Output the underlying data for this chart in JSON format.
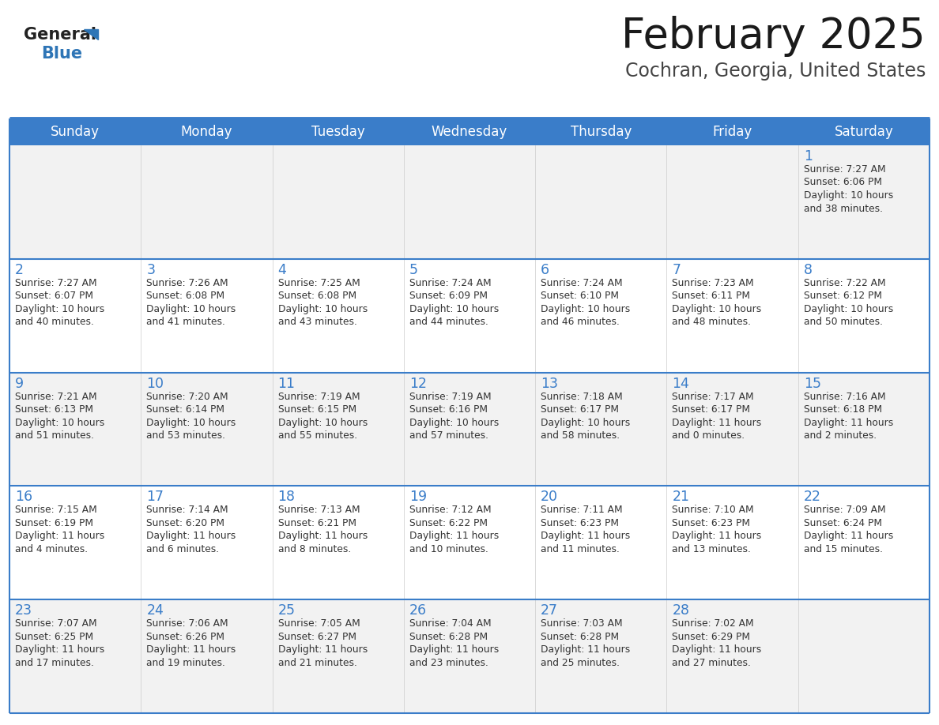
{
  "title": "February 2025",
  "subtitle": "Cochran, Georgia, United States",
  "days_of_week": [
    "Sunday",
    "Monday",
    "Tuesday",
    "Wednesday",
    "Thursday",
    "Friday",
    "Saturday"
  ],
  "header_bg": "#3A7DC9",
  "header_text": "#FFFFFF",
  "cell_bg_light": "#F2F2F2",
  "cell_bg_white": "#FFFFFF",
  "day_number_color": "#3A7DC9",
  "text_color": "#333333",
  "row_divider_color": "#3A7DC9",
  "title_color": "#1a1a1a",
  "subtitle_color": "#444444",
  "logo_general_color": "#222222",
  "logo_blue_color": "#2E75B6",
  "weeks": [
    [
      {
        "day": null,
        "info": null
      },
      {
        "day": null,
        "info": null
      },
      {
        "day": null,
        "info": null
      },
      {
        "day": null,
        "info": null
      },
      {
        "day": null,
        "info": null
      },
      {
        "day": null,
        "info": null
      },
      {
        "day": 1,
        "info": "Sunrise: 7:27 AM\nSunset: 6:06 PM\nDaylight: 10 hours\nand 38 minutes."
      }
    ],
    [
      {
        "day": 2,
        "info": "Sunrise: 7:27 AM\nSunset: 6:07 PM\nDaylight: 10 hours\nand 40 minutes."
      },
      {
        "day": 3,
        "info": "Sunrise: 7:26 AM\nSunset: 6:08 PM\nDaylight: 10 hours\nand 41 minutes."
      },
      {
        "day": 4,
        "info": "Sunrise: 7:25 AM\nSunset: 6:08 PM\nDaylight: 10 hours\nand 43 minutes."
      },
      {
        "day": 5,
        "info": "Sunrise: 7:24 AM\nSunset: 6:09 PM\nDaylight: 10 hours\nand 44 minutes."
      },
      {
        "day": 6,
        "info": "Sunrise: 7:24 AM\nSunset: 6:10 PM\nDaylight: 10 hours\nand 46 minutes."
      },
      {
        "day": 7,
        "info": "Sunrise: 7:23 AM\nSunset: 6:11 PM\nDaylight: 10 hours\nand 48 minutes."
      },
      {
        "day": 8,
        "info": "Sunrise: 7:22 AM\nSunset: 6:12 PM\nDaylight: 10 hours\nand 50 minutes."
      }
    ],
    [
      {
        "day": 9,
        "info": "Sunrise: 7:21 AM\nSunset: 6:13 PM\nDaylight: 10 hours\nand 51 minutes."
      },
      {
        "day": 10,
        "info": "Sunrise: 7:20 AM\nSunset: 6:14 PM\nDaylight: 10 hours\nand 53 minutes."
      },
      {
        "day": 11,
        "info": "Sunrise: 7:19 AM\nSunset: 6:15 PM\nDaylight: 10 hours\nand 55 minutes."
      },
      {
        "day": 12,
        "info": "Sunrise: 7:19 AM\nSunset: 6:16 PM\nDaylight: 10 hours\nand 57 minutes."
      },
      {
        "day": 13,
        "info": "Sunrise: 7:18 AM\nSunset: 6:17 PM\nDaylight: 10 hours\nand 58 minutes."
      },
      {
        "day": 14,
        "info": "Sunrise: 7:17 AM\nSunset: 6:17 PM\nDaylight: 11 hours\nand 0 minutes."
      },
      {
        "day": 15,
        "info": "Sunrise: 7:16 AM\nSunset: 6:18 PM\nDaylight: 11 hours\nand 2 minutes."
      }
    ],
    [
      {
        "day": 16,
        "info": "Sunrise: 7:15 AM\nSunset: 6:19 PM\nDaylight: 11 hours\nand 4 minutes."
      },
      {
        "day": 17,
        "info": "Sunrise: 7:14 AM\nSunset: 6:20 PM\nDaylight: 11 hours\nand 6 minutes."
      },
      {
        "day": 18,
        "info": "Sunrise: 7:13 AM\nSunset: 6:21 PM\nDaylight: 11 hours\nand 8 minutes."
      },
      {
        "day": 19,
        "info": "Sunrise: 7:12 AM\nSunset: 6:22 PM\nDaylight: 11 hours\nand 10 minutes."
      },
      {
        "day": 20,
        "info": "Sunrise: 7:11 AM\nSunset: 6:23 PM\nDaylight: 11 hours\nand 11 minutes."
      },
      {
        "day": 21,
        "info": "Sunrise: 7:10 AM\nSunset: 6:23 PM\nDaylight: 11 hours\nand 13 minutes."
      },
      {
        "day": 22,
        "info": "Sunrise: 7:09 AM\nSunset: 6:24 PM\nDaylight: 11 hours\nand 15 minutes."
      }
    ],
    [
      {
        "day": 23,
        "info": "Sunrise: 7:07 AM\nSunset: 6:25 PM\nDaylight: 11 hours\nand 17 minutes."
      },
      {
        "day": 24,
        "info": "Sunrise: 7:06 AM\nSunset: 6:26 PM\nDaylight: 11 hours\nand 19 minutes."
      },
      {
        "day": 25,
        "info": "Sunrise: 7:05 AM\nSunset: 6:27 PM\nDaylight: 11 hours\nand 21 minutes."
      },
      {
        "day": 26,
        "info": "Sunrise: 7:04 AM\nSunset: 6:28 PM\nDaylight: 11 hours\nand 23 minutes."
      },
      {
        "day": 27,
        "info": "Sunrise: 7:03 AM\nSunset: 6:28 PM\nDaylight: 11 hours\nand 25 minutes."
      },
      {
        "day": 28,
        "info": "Sunrise: 7:02 AM\nSunset: 6:29 PM\nDaylight: 11 hours\nand 27 minutes."
      },
      {
        "day": null,
        "info": null
      }
    ]
  ],
  "fig_width": 11.88,
  "fig_height": 9.18,
  "dpi": 100
}
